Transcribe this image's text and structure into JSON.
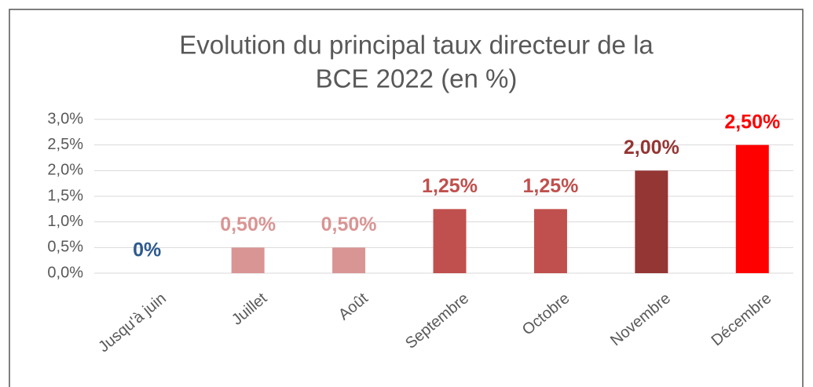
{
  "chart_data": {
    "type": "bar",
    "title": [
      "Evolution du principal taux directeur de la",
      "BCE 2022 (en %)"
    ],
    "categories": [
      "Jusqu'à juin",
      "Juillet",
      "Août",
      "Septembre",
      "Octobre",
      "Novembre",
      "Décembre"
    ],
    "values": [
      0,
      0.5,
      0.5,
      1.25,
      1.25,
      2,
      2.5
    ],
    "value_labels": [
      "0%",
      "0,50%",
      "0,50%",
      "1,25%",
      "1,25%",
      "2,00%",
      "2,50%"
    ],
    "colors": [
      "#2e5a8e",
      "#d99594",
      "#d99594",
      "#c0504d",
      "#c0504d",
      "#943634",
      "#ff0000"
    ],
    "label_colors": [
      "#2e5a8e",
      "#d99594",
      "#d99594",
      "#c0504d",
      "#c0504d",
      "#943634",
      "#ff0000"
    ],
    "ylim": [
      0,
      3
    ],
    "yticks": [
      {
        "value": 0,
        "label": "0,0%"
      },
      {
        "value": 0.5,
        "label": "0,5%"
      },
      {
        "value": 1,
        "label": "1,0%"
      },
      {
        "value": 1.5,
        "label": "1,5%"
      },
      {
        "value": 2,
        "label": "2,0%"
      },
      {
        "value": 2.5,
        "label": "2,5%"
      },
      {
        "value": 3,
        "label": "3,0%"
      }
    ],
    "grid": true
  }
}
